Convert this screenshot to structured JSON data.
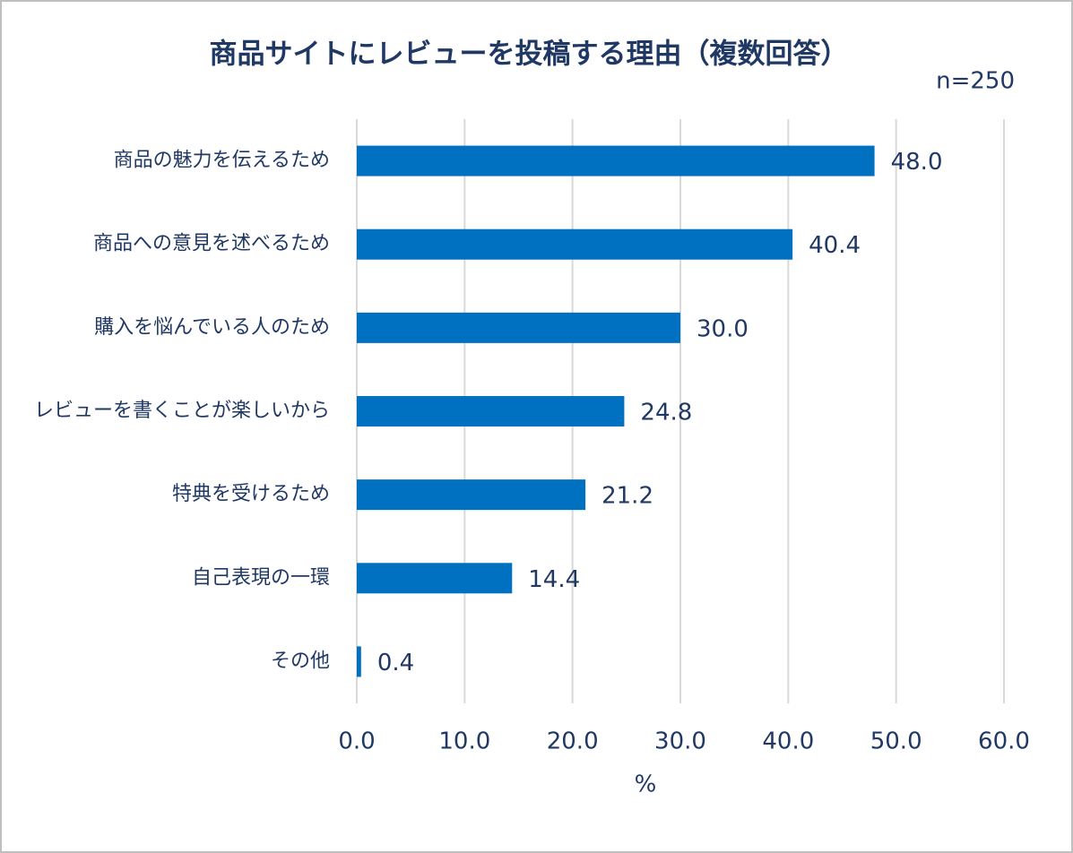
{
  "chart_data": {
    "type": "bar",
    "orientation": "horizontal",
    "title": "商品サイトにレビューを投稿する理由（複数回答）",
    "subtitle": "n=250",
    "x_label": "%",
    "categories": [
      "商品の魅力を伝えるため",
      "商品への意見を述べるため",
      "購入を悩んでいる人のため",
      "レビューを書くことが楽しいから",
      "特典を受けるため",
      "自己表現の一環",
      "その他"
    ],
    "values": [
      48.0,
      40.4,
      30.0,
      24.8,
      21.2,
      14.4,
      0.4
    ],
    "value_labels": [
      "48.0",
      "40.4",
      "30.0",
      "24.8",
      "21.2",
      "14.4",
      "0.4"
    ],
    "color": "#0070c0",
    "xlim": [
      0,
      60
    ],
    "xticks": [
      {
        "value": 0,
        "label": "0.0"
      },
      {
        "value": 10,
        "label": "10.0"
      },
      {
        "value": 20,
        "label": "20.0"
      },
      {
        "value": 30,
        "label": "30.0"
      },
      {
        "value": 40,
        "label": "40.0"
      },
      {
        "value": 50,
        "label": "50.0"
      },
      {
        "value": 60,
        "label": "60.0"
      }
    ],
    "grid": true
  }
}
